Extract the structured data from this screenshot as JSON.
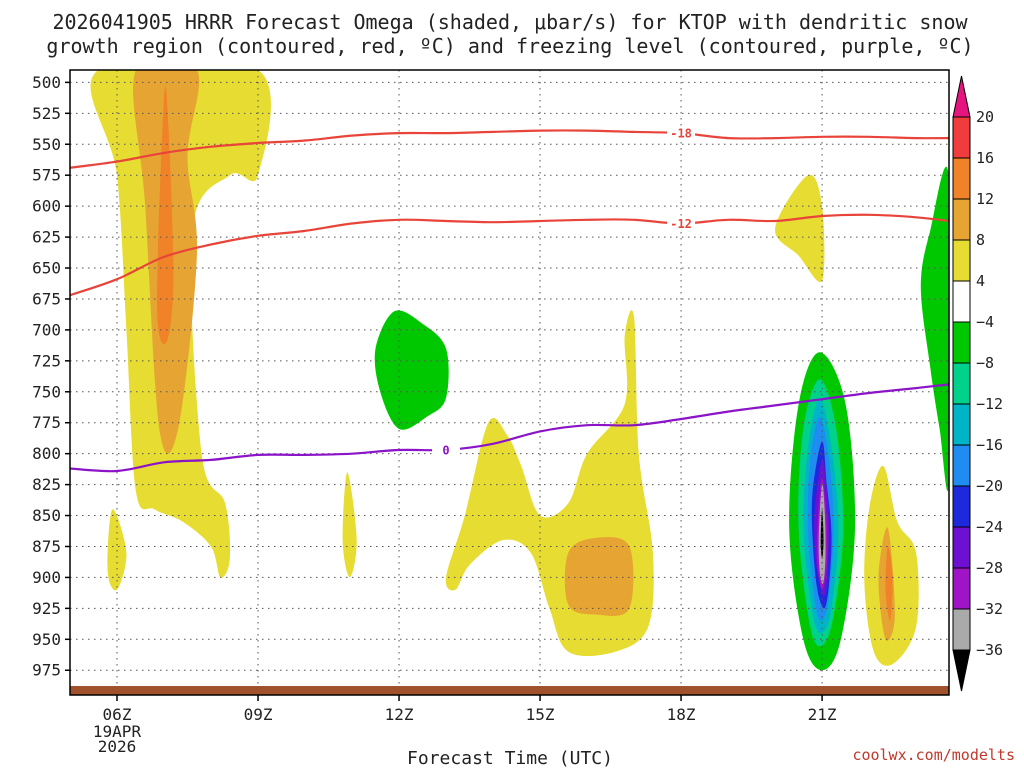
{
  "chart_data": {
    "type": "time-height contour",
    "title_lines": [
      "2026041905 HRRR Forecast Omega (shaded, μbar/s) for KTOP with dendritic snow",
      "growth region (contoured, red, ºC) and freezing level (contoured, purple, ºC)"
    ],
    "xlabel": "Forecast Time (UTC)",
    "credit": "coolwx.com/modelts",
    "x_range_hours": [
      5,
      23.7
    ],
    "y_range_hpa": [
      490,
      995
    ],
    "x_ticks": [
      {
        "hour": 6,
        "label": "06Z",
        "sub": [
          "19APR",
          "2026"
        ]
      },
      {
        "hour": 9,
        "label": "09Z",
        "sub": []
      },
      {
        "hour": 12,
        "label": "12Z",
        "sub": []
      },
      {
        "hour": 15,
        "label": "15Z",
        "sub": []
      },
      {
        "hour": 18,
        "label": "18Z",
        "sub": []
      },
      {
        "hour": 21,
        "label": "21Z",
        "sub": []
      }
    ],
    "y_ticks": [
      500,
      525,
      550,
      575,
      600,
      625,
      650,
      675,
      700,
      725,
      750,
      775,
      800,
      825,
      850,
      875,
      900,
      925,
      950,
      975
    ],
    "colorbar": {
      "labels": [
        "20",
        "16",
        "12",
        "8",
        "4",
        "−4",
        "−8",
        "−12",
        "−16",
        "−20",
        "−24",
        "−28",
        "−32",
        "−36"
      ],
      "bands": [
        {
          "range": "16-20",
          "color": "#f03c3c"
        },
        {
          "range": "12-16",
          "color": "#f08228"
        },
        {
          "range": "8-12",
          "color": "#e6a532"
        },
        {
          "range": "4-8",
          "color": "#e6dc32"
        },
        {
          "range": "-4-4",
          "color": "#ffffff"
        },
        {
          "range": "-8--4",
          "color": "#00c800"
        },
        {
          "range": "-12--8",
          "color": "#00d28c"
        },
        {
          "range": "-16--12",
          "color": "#00b4c8"
        },
        {
          "range": "-20--16",
          "color": "#1e8cf0"
        },
        {
          "range": "-24--20",
          "color": "#1e28dc"
        },
        {
          "range": "-28--24",
          "color": "#6e10d2"
        },
        {
          "range": "-32--28",
          "color": "#a014c8"
        },
        {
          "range": "-36--32",
          "color": "#aaaaaa"
        }
      ],
      "over_color": "#e6147e",
      "under_color": "#000000"
    },
    "contours": [
      {
        "name": "dendritic -18 C",
        "label": "-18",
        "color": "#e8443a",
        "points": [
          [
            5,
            569
          ],
          [
            6,
            564
          ],
          [
            7,
            557
          ],
          [
            8,
            552
          ],
          [
            9,
            549
          ],
          [
            10,
            547
          ],
          [
            11,
            543
          ],
          [
            12,
            541
          ],
          [
            13,
            541
          ],
          [
            14,
            540
          ],
          [
            15,
            539
          ],
          [
            16,
            539
          ],
          [
            17,
            540
          ],
          [
            18,
            541
          ],
          [
            19,
            545
          ],
          [
            20,
            545
          ],
          [
            21,
            544
          ],
          [
            22,
            544
          ],
          [
            23,
            545
          ],
          [
            23.7,
            545
          ]
        ]
      },
      {
        "name": "dendritic -12 C",
        "label": "-12",
        "color": "#e8443a",
        "points": [
          [
            5,
            672
          ],
          [
            6,
            659
          ],
          [
            7,
            641
          ],
          [
            8,
            631
          ],
          [
            9,
            624
          ],
          [
            10,
            620
          ],
          [
            11,
            614
          ],
          [
            12,
            611
          ],
          [
            13,
            612
          ],
          [
            14,
            613
          ],
          [
            15,
            612
          ],
          [
            16,
            611
          ],
          [
            17,
            611
          ],
          [
            18,
            614
          ],
          [
            19,
            611
          ],
          [
            20,
            612
          ],
          [
            21,
            608
          ],
          [
            22,
            607
          ],
          [
            23,
            609
          ],
          [
            23.7,
            612
          ]
        ]
      },
      {
        "name": "freezing level 0 C",
        "label": "0",
        "color": "#8b14c8",
        "points": [
          [
            5,
            812
          ],
          [
            6,
            814
          ],
          [
            7,
            807
          ],
          [
            8,
            805
          ],
          [
            9,
            801
          ],
          [
            10,
            801
          ],
          [
            11,
            800
          ],
          [
            12,
            797
          ],
          [
            13,
            797
          ],
          [
            14,
            792
          ],
          [
            15,
            782
          ],
          [
            16,
            777
          ],
          [
            17,
            777
          ],
          [
            18,
            772
          ],
          [
            19,
            766
          ],
          [
            20,
            761
          ],
          [
            21,
            756
          ],
          [
            22,
            751
          ],
          [
            23,
            747
          ],
          [
            23.7,
            744
          ]
        ]
      }
    ],
    "omega_regions": [
      {
        "name": "ascent 4-8 early column",
        "band": "4-8",
        "points": [
          [
            5.6,
            490
          ],
          [
            6.0,
            575
          ],
          [
            6.2,
            700
          ],
          [
            6.4,
            830
          ],
          [
            6.8,
            845
          ],
          [
            7.4,
            855
          ],
          [
            8.0,
            875
          ],
          [
            8.2,
            900
          ],
          [
            8.4,
            885
          ],
          [
            8.3,
            840
          ],
          [
            7.8,
            800
          ],
          [
            7.6,
            620
          ],
          [
            8.4,
            575
          ],
          [
            9.0,
            575
          ],
          [
            9.0,
            490
          ]
        ]
      },
      {
        "name": "ascent 8-12 early column",
        "band": "8-12",
        "points": [
          [
            6.4,
            490
          ],
          [
            6.6,
            600
          ],
          [
            6.9,
            780
          ],
          [
            7.3,
            780
          ],
          [
            7.7,
            640
          ],
          [
            7.5,
            560
          ],
          [
            7.7,
            490
          ]
        ]
      },
      {
        "name": "ascent 12-16 early core",
        "band": "12-16",
        "points": [
          [
            7.0,
            512
          ],
          [
            6.85,
            680
          ],
          [
            7.05,
            710
          ],
          [
            7.2,
            660
          ],
          [
            7.1,
            540
          ]
        ]
      },
      {
        "name": "ascent 4-8 small blob 06Z",
        "band": "4-8",
        "points": [
          [
            5.9,
            845
          ],
          [
            5.8,
            895
          ],
          [
            6.0,
            910
          ],
          [
            6.2,
            880
          ]
        ]
      },
      {
        "name": "ascent 4-8 sliver 11Z",
        "band": "4-8",
        "points": [
          [
            10.9,
            815
          ],
          [
            10.8,
            870
          ],
          [
            10.95,
            900
          ],
          [
            11.1,
            870
          ]
        ]
      },
      {
        "name": "ascent 4-8 midday region",
        "band": "4-8",
        "points": [
          [
            13.0,
            900
          ],
          [
            13.4,
            850
          ],
          [
            13.9,
            775
          ],
          [
            14.3,
            785
          ],
          [
            14.6,
            810
          ],
          [
            15.0,
            850
          ],
          [
            15.6,
            840
          ],
          [
            16.0,
            800
          ],
          [
            16.8,
            760
          ],
          [
            16.8,
            705
          ],
          [
            17.0,
            690
          ],
          [
            17.1,
            800
          ],
          [
            17.4,
            880
          ],
          [
            17.3,
            940
          ],
          [
            16.6,
            960
          ],
          [
            15.6,
            960
          ],
          [
            15.2,
            925
          ],
          [
            14.8,
            880
          ],
          [
            14.2,
            870
          ],
          [
            13.5,
            890
          ],
          [
            13.2,
            910
          ]
        ]
      },
      {
        "name": "ascent 8-12 midday core",
        "band": "8-12",
        "points": [
          [
            15.6,
            880
          ],
          [
            16.2,
            868
          ],
          [
            16.9,
            875
          ],
          [
            16.9,
            925
          ],
          [
            16.2,
            930
          ],
          [
            15.6,
            922
          ]
        ]
      },
      {
        "name": "descent -8 to -4 near 12Z",
        "band": "-8--4",
        "points": [
          [
            11.5,
            715
          ],
          [
            11.9,
            685
          ],
          [
            12.5,
            695
          ],
          [
            13.0,
            715
          ],
          [
            13.0,
            755
          ],
          [
            12.6,
            770
          ],
          [
            12.0,
            780
          ],
          [
            11.6,
            750
          ]
        ]
      },
      {
        "name": "ascent 4-8 near 20Z",
        "band": "4-8",
        "points": [
          [
            20.0,
            618
          ],
          [
            20.7,
            575
          ],
          [
            21.0,
            600
          ],
          [
            21.0,
            660
          ],
          [
            20.5,
            640
          ]
        ]
      },
      {
        "name": "ascent 4-8 near 22Z",
        "band": "4-8",
        "points": [
          [
            22.0,
            845
          ],
          [
            22.3,
            810
          ],
          [
            22.6,
            855
          ],
          [
            23.0,
            880
          ],
          [
            23.0,
            940
          ],
          [
            22.5,
            970
          ],
          [
            22.1,
            960
          ],
          [
            21.9,
            905
          ]
        ]
      },
      {
        "name": "ascent 8-12 near 22Z",
        "band": "8-12",
        "points": [
          [
            22.4,
            860
          ],
          [
            22.2,
            900
          ],
          [
            22.35,
            950
          ],
          [
            22.55,
            930
          ]
        ]
      },
      {
        "name": "ascent 12-16 near 22Z",
        "band": "12-16",
        "points": [
          [
            22.4,
            875
          ],
          [
            22.35,
            910
          ],
          [
            22.45,
            935
          ],
          [
            22.5,
            900
          ]
        ]
      },
      {
        "name": "descent -8 to -4 right edge",
        "band": "-8--4",
        "points": [
          [
            23.7,
            578
          ],
          [
            23.3,
            620
          ],
          [
            23.1,
            665
          ],
          [
            23.3,
            730
          ],
          [
            23.5,
            780
          ],
          [
            23.7,
            820
          ]
        ]
      },
      {
        "name": "descent core -8 to -4",
        "band": "-8--4",
        "points": [
          [
            20.95,
            718
          ],
          [
            20.5,
            760
          ],
          [
            20.3,
            860
          ],
          [
            20.6,
            950
          ],
          [
            21.0,
            975
          ],
          [
            21.4,
            950
          ],
          [
            21.7,
            860
          ],
          [
            21.5,
            760
          ]
        ]
      },
      {
        "name": "descent core -12 to -8",
        "band": "-12--8",
        "points": [
          [
            20.95,
            740
          ],
          [
            20.6,
            780
          ],
          [
            20.5,
            860
          ],
          [
            20.75,
            940
          ],
          [
            21.0,
            955
          ],
          [
            21.25,
            930
          ],
          [
            21.45,
            860
          ],
          [
            21.3,
            780
          ]
        ]
      },
      {
        "name": "descent core -16 to -12",
        "band": "-16--12",
        "points": [
          [
            20.95,
            755
          ],
          [
            20.7,
            795
          ],
          [
            20.6,
            860
          ],
          [
            20.8,
            930
          ],
          [
            21.0,
            945
          ],
          [
            21.2,
            925
          ],
          [
            21.35,
            860
          ],
          [
            21.2,
            795
          ]
        ]
      },
      {
        "name": "descent core -20 to -16",
        "band": "-20--16",
        "points": [
          [
            20.95,
            770
          ],
          [
            20.75,
            805
          ],
          [
            20.7,
            860
          ],
          [
            20.85,
            920
          ],
          [
            21.0,
            935
          ],
          [
            21.15,
            915
          ],
          [
            21.25,
            860
          ],
          [
            21.15,
            805
          ]
        ]
      },
      {
        "name": "descent core -24 to -20",
        "band": "-24--20",
        "points": [
          [
            21.0,
            790
          ],
          [
            20.8,
            830
          ],
          [
            20.8,
            870
          ],
          [
            20.9,
            910
          ],
          [
            21.05,
            925
          ],
          [
            21.15,
            905
          ],
          [
            21.2,
            865
          ],
          [
            21.1,
            825
          ]
        ]
      },
      {
        "name": "descent core -28 to -24",
        "band": "-28--24",
        "points": [
          [
            21.0,
            805
          ],
          [
            20.85,
            845
          ],
          [
            20.85,
            880
          ],
          [
            20.95,
            905
          ],
          [
            21.05,
            915
          ],
          [
            21.12,
            895
          ],
          [
            21.15,
            860
          ],
          [
            21.1,
            830
          ]
        ]
      },
      {
        "name": "descent core -32 to -28",
        "band": "-32--28",
        "points": [
          [
            21.0,
            820
          ],
          [
            20.9,
            860
          ],
          [
            20.9,
            890
          ],
          [
            21.0,
            910
          ],
          [
            21.1,
            890
          ],
          [
            21.1,
            855
          ]
        ]
      },
      {
        "name": "descent core -36 to -32",
        "band": "-36--32",
        "points": [
          [
            21.0,
            825
          ],
          [
            20.93,
            865
          ],
          [
            20.95,
            895
          ],
          [
            21.02,
            905
          ],
          [
            21.07,
            885
          ],
          [
            21.06,
            850
          ]
        ]
      },
      {
        "name": "descent core below -36",
        "band": "under",
        "points": [
          [
            21.0,
            845
          ],
          [
            20.97,
            870
          ],
          [
            21.0,
            885
          ],
          [
            21.03,
            870
          ]
        ]
      }
    ]
  }
}
